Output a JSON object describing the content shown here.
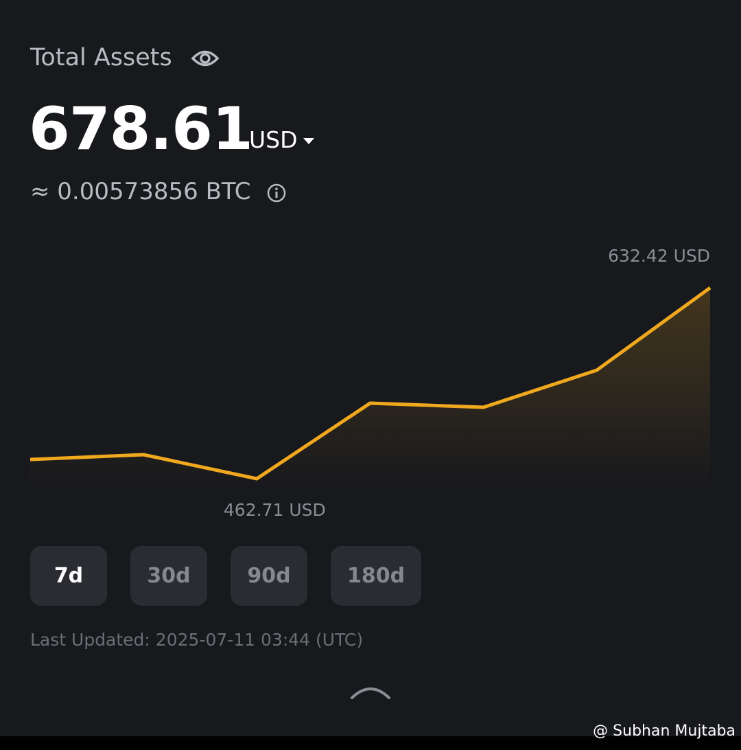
{
  "header": {
    "title": "Total Assets",
    "balance": "678.61",
    "currency": "USD",
    "btc_equivalent": "≈ 0.00573856 BTC"
  },
  "chart_data": {
    "type": "line",
    "color": "#f0a81e",
    "values": [
      479.8,
      484.08,
      462.71,
      529.86,
      526.2,
      559.17,
      632.42
    ],
    "value_labels": [
      null,
      null,
      "462.71 USD",
      null,
      null,
      null,
      "632.42 USD"
    ]
  },
  "ranges": {
    "options": [
      "7d",
      "30d",
      "90d",
      "180d"
    ],
    "selected": 0
  },
  "footer": {
    "last_updated": "Last Updated: 2025-07-11 03:44 (UTC)",
    "watermark": "@ Subhan Mujtaba"
  }
}
